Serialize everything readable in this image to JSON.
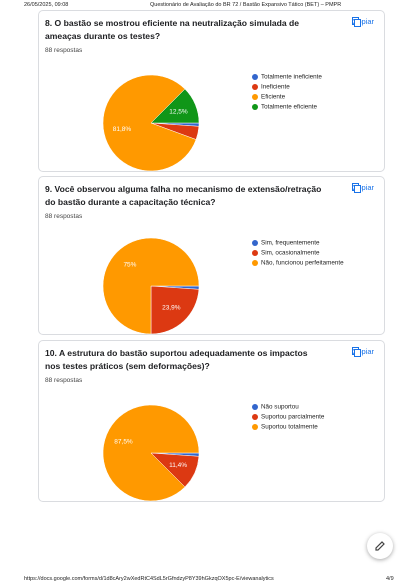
{
  "header": {
    "datetime": "26/05/2025, 09:08",
    "title": "Questionário de Avaliação do BR 72 / Bastão Expansivo Tático (BET) – PMPR"
  },
  "footer": {
    "url": "https://docs.google.com/forms/d/1d8cAry2wXedRtC4SdL5rGfndzyP8Y39hGkzqOX5pc-E/viewanalytics",
    "page": "4/9"
  },
  "copy_buttons": [
    "Copiar",
    "Copiar",
    "Copiar"
  ],
  "chart_data": [
    {
      "type": "pie",
      "title": "8. O bastão se mostrou eficiente na neutralização simulada de ameaças durante os testes?",
      "subtitle": "88 respostas",
      "categories": [
        "Totalmente ineficiente",
        "Ineficiente",
        "Eficiente",
        "Totalmente eficiente"
      ],
      "values": [
        1.1,
        4.5,
        81.8,
        12.5
      ],
      "value_labels": [
        null,
        null,
        "81,8%",
        "12,5%"
      ],
      "colors": [
        "#3366cc",
        "#dc3912",
        "#ff9900",
        "#109618"
      ]
    },
    {
      "type": "pie",
      "title": "9. Você observou alguma falha no mecanismo de extensão/retração do bastão durante a capacitação técnica?",
      "subtitle": "88 respostas",
      "categories": [
        "Sim, frequentemente",
        "Sim, ocasionalmente",
        "Não, funcionou perfeitamente"
      ],
      "values": [
        1.1,
        23.9,
        75
      ],
      "value_labels": [
        null,
        "23,9%",
        "75%"
      ],
      "colors": [
        "#3366cc",
        "#dc3912",
        "#ff9900"
      ]
    },
    {
      "type": "pie",
      "title": "10. A estrutura do bastão suportou adequadamente os impactos nos testes práticos (sem deformações)?",
      "subtitle": "88 respostas",
      "categories": [
        "Não suportou",
        "Suportou parcialmente",
        "Suportou totalmente"
      ],
      "values": [
        1.1,
        11.4,
        87.5
      ],
      "value_labels": [
        null,
        "11,4%",
        "87,5%"
      ],
      "colors": [
        "#3366cc",
        "#dc3912",
        "#ff9900"
      ]
    }
  ]
}
